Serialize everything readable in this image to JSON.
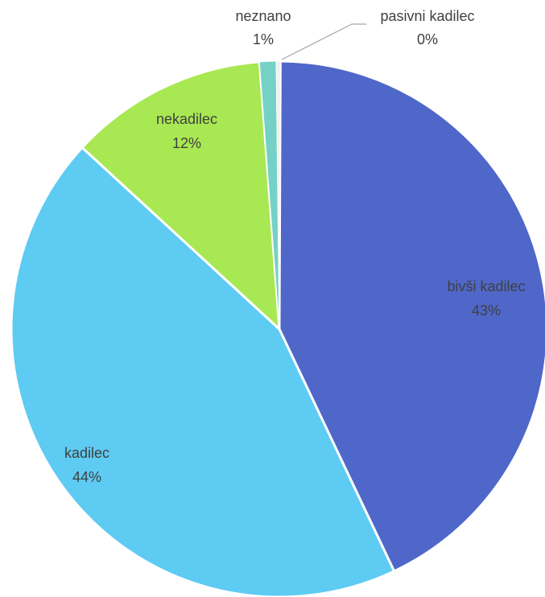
{
  "chart_data": {
    "type": "pie",
    "title": "",
    "slices": [
      {
        "label": "bivši kadilec",
        "value": 43,
        "value_label": "43%",
        "color": "#4f67c9"
      },
      {
        "label": "kadilec",
        "value": 44,
        "value_label": "44%",
        "color": "#5ecbf3"
      },
      {
        "label": "nekadilec",
        "value": 12,
        "value_label": "12%",
        "color": "#a8e853"
      },
      {
        "label": "neznano",
        "value": 1,
        "value_label": "1%",
        "color": "#75d1c5"
      },
      {
        "label": "pasivni kadilec",
        "value": 0,
        "value_label": "0%",
        "color": "#f0f0f0"
      }
    ]
  }
}
